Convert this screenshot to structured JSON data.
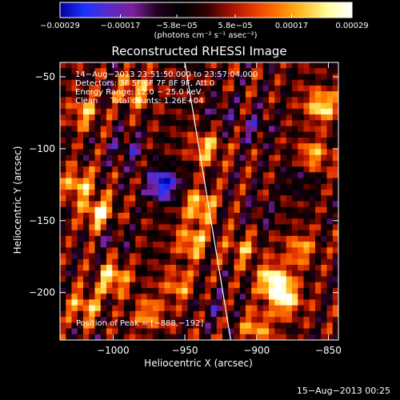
{
  "chart_data": {
    "type": "heatmap",
    "title": "Reconstructed RHESSI Image",
    "xlabel": "Heliocentric X (arcsec)",
    "ylabel": "Heliocentric Y (arcsec)",
    "xlim": [
      -1037,
      -843
    ],
    "ylim": [
      -233,
      -40
    ],
    "x_ticks": [
      -1000,
      -950,
      -900,
      -850
    ],
    "x_tick_labels": [
      "−1000",
      "−950",
      "−900",
      "−850"
    ],
    "y_ticks": [
      -50,
      -100,
      -150,
      -200
    ],
    "y_tick_labels": [
      "−50",
      "−100",
      "−150",
      "−200"
    ],
    "colorbar": {
      "range": [
        -0.00029,
        0.00029
      ],
      "ticks": [
        -0.00029,
        -0.00017,
        -5.8e-05,
        5.8e-05,
        0.00017,
        0.00029
      ],
      "tick_labels": [
        "−0.00029",
        "−0.00017",
        "−5.8e−05",
        "5.8e−05",
        "0.00017",
        "0.00029"
      ],
      "unit_label": "(photons cm⁻² s⁻¹ asec⁻²)",
      "colormap": [
        "#0000a0",
        "#1a32ff",
        "#5a2cc8",
        "#7a1f9a",
        "#220022",
        "#000000",
        "#300000",
        "#a01000",
        "#e83a00",
        "#ff7a00",
        "#ffc22a",
        "#ffff9e",
        "#ffffff"
      ]
    },
    "annotations": [
      "14−Aug−2013 23:51:50.000 to 23:57:04.000",
      "Detectors: 3F 5F 6F 7F 8F 9F, Att 0",
      "Energy Range: 12.0 − 25.0 keV",
      "Clean     Total counts: 1.26E+04"
    ],
    "peak_label": "Position of Peak = [−888,−192]",
    "peak_position": [
      -888,
      -192
    ],
    "limb_line": {
      "x": [
        -950,
        -918
      ],
      "y": [
        -40,
        -233
      ]
    },
    "features": [
      {
        "x": -965,
        "y": -125,
        "value": -0.00029
      },
      {
        "x": -990,
        "y": -100,
        "value": -0.00012
      },
      {
        "x": -900,
        "y": -85,
        "value": -0.0001
      },
      {
        "x": -870,
        "y": -120,
        "value": -9e-05
      },
      {
        "x": -925,
        "y": -75,
        "value": -8e-05
      },
      {
        "x": -1000,
        "y": -160,
        "value": -8e-05
      },
      {
        "x": -895,
        "y": -145,
        "value": -7e-05
      },
      {
        "x": -930,
        "y": -210,
        "value": -7e-05
      },
      {
        "x": -1010,
        "y": -145,
        "value": 0.00024
      },
      {
        "x": -1025,
        "y": -125,
        "value": 0.0002
      },
      {
        "x": -1000,
        "y": -190,
        "value": 0.00022
      },
      {
        "x": -1020,
        "y": -210,
        "value": 0.00018
      },
      {
        "x": -985,
        "y": -60,
        "value": 0.00018
      },
      {
        "x": -1020,
        "y": -75,
        "value": 0.00016
      },
      {
        "x": -940,
        "y": -140,
        "value": 0.00022
      },
      {
        "x": -935,
        "y": -100,
        "value": 0.00018
      },
      {
        "x": -945,
        "y": -165,
        "value": 0.0002
      },
      {
        "x": -975,
        "y": -215,
        "value": 0.00016
      },
      {
        "x": -888,
        "y": -192,
        "value": 0.00029
      },
      {
        "x": -880,
        "y": -205,
        "value": 0.00024
      },
      {
        "x": -855,
        "y": -70,
        "value": 0.00024
      },
      {
        "x": -860,
        "y": -105,
        "value": 0.00018
      },
      {
        "x": -900,
        "y": -225,
        "value": 0.00017
      },
      {
        "x": -910,
        "y": -170,
        "value": 0.00014
      },
      {
        "x": -870,
        "y": -170,
        "value": 0.00016
      },
      {
        "x": -955,
        "y": -195,
        "value": 0.00015
      }
    ]
  },
  "footer_timestamp": "15−Aug−2013 00:25"
}
